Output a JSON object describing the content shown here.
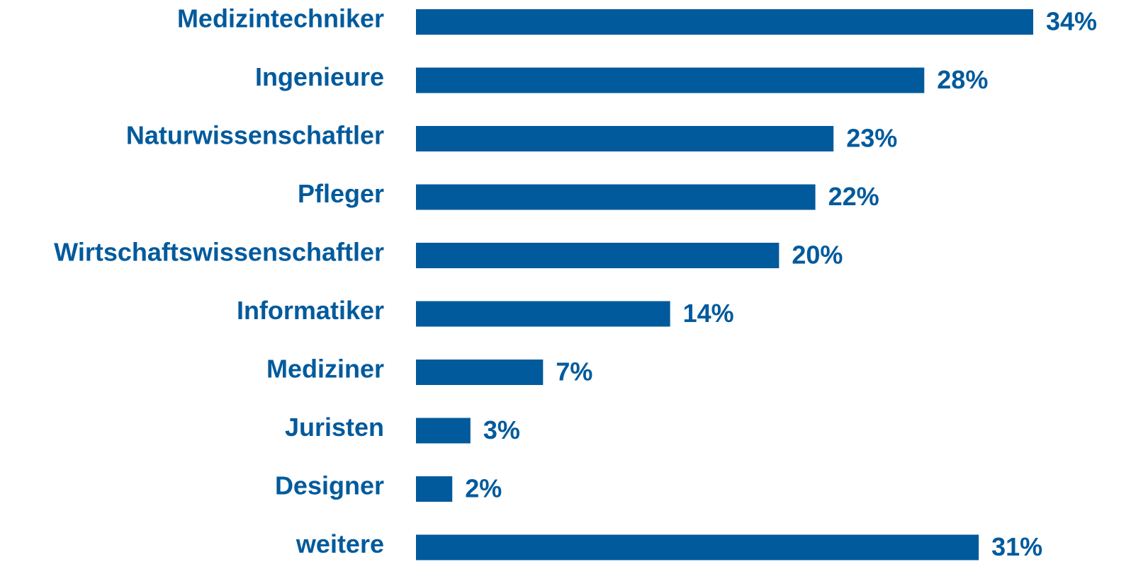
{
  "chart_data": {
    "type": "hbar",
    "categories": [
      "Medizintechniker",
      "Ingenieure",
      "Naturwissenschaftler",
      "Pfleger",
      "Wirtschaftswissenschaftler",
      "Informatiker",
      "Mediziner",
      "Juristen",
      "Designer",
      "weitere"
    ],
    "values": [
      34,
      28,
      23,
      22,
      20,
      14,
      7,
      3,
      2,
      31
    ],
    "value_labels": [
      "34%",
      "28%",
      "23%",
      "22%",
      "20%",
      "14%",
      "7%",
      "3%",
      "2%",
      "31%"
    ],
    "color": "#005a9c"
  }
}
